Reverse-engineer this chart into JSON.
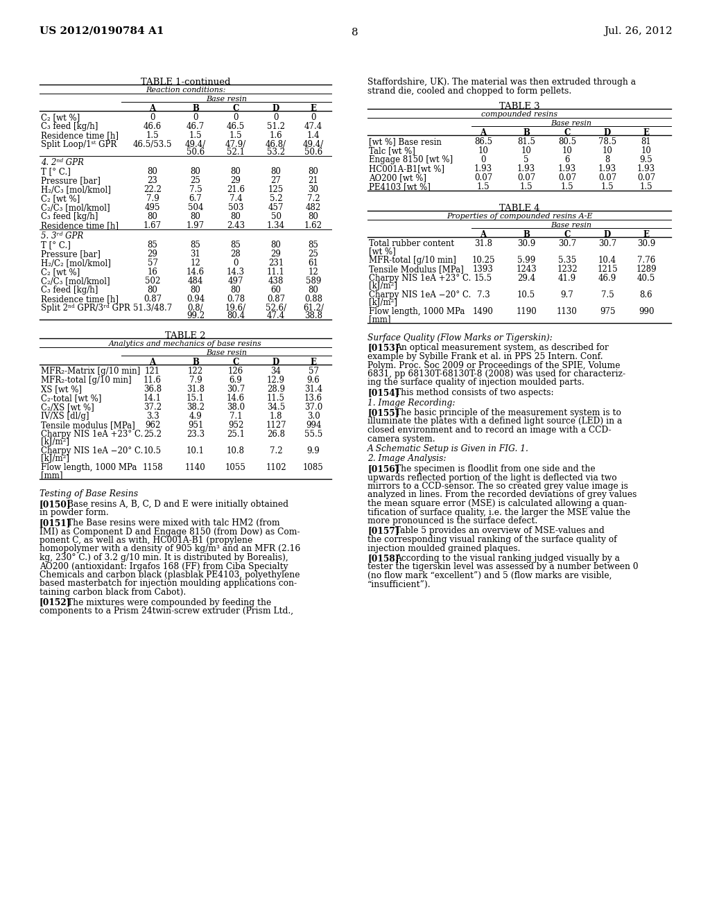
{
  "bg_color": "#ffffff",
  "page_header_left": "US 2012/0190784 A1",
  "page_header_right": "Jul. 26, 2012",
  "page_number": "8",
  "table1_title": "TABLE 1-continued",
  "table1_subtitle": "Reaction conditions:",
  "table1_subheader": "Base resin",
  "table1_cols": [
    "A",
    "B",
    "C",
    "D",
    "E"
  ],
  "table1_sections": [
    {
      "section_header": "",
      "rows": [
        [
          "C₂ [wt %]",
          "0",
          "0",
          "0",
          "0",
          "0"
        ],
        [
          "C₃ feed [kg/h]",
          "46.6",
          "46.7",
          "46.5",
          "51.2",
          "47.4"
        ],
        [
          "Residence time [h]",
          "1.5",
          "1.5",
          "1.5",
          "1.6",
          "1.4"
        ],
        [
          "Split Loop/1ˢᵗ GPR",
          "46.5/53.5",
          "49.4/\n50.6",
          "47.9/\n52.1",
          "46.8/\n53.2",
          "49.4/\n50.6"
        ]
      ]
    },
    {
      "section_header": "4. 2ⁿᵈ GPR",
      "rows": [
        [
          "T [° C.]",
          "80",
          "80",
          "80",
          "80",
          "80"
        ],
        [
          "Pressure [bar]",
          "23",
          "25",
          "29",
          "27",
          "21"
        ],
        [
          "H₂/C₃ [mol/kmol]",
          "22.2",
          "7.5",
          "21.6",
          "125",
          "30"
        ],
        [
          "C₂ [wt %]",
          "7.9",
          "6.7",
          "7.4",
          "5.2",
          "7.2"
        ],
        [
          "C₂/C₃ [mol/kmol]",
          "495",
          "504",
          "503",
          "457",
          "482"
        ],
        [
          "C₃ feed [kg/h]",
          "80",
          "80",
          "80",
          "50",
          "80"
        ],
        [
          "Residence time [h]",
          "1.67",
          "1.97",
          "2.43",
          "1.34",
          "1.62"
        ]
      ]
    },
    {
      "section_header": "5. 3ʳᵈ GPR",
      "rows": [
        [
          "T [° C.]",
          "85",
          "85",
          "85",
          "80",
          "85"
        ],
        [
          "Pressure [bar]",
          "29",
          "31",
          "28",
          "29",
          "25"
        ],
        [
          "H₂/C₂ [mol/kmol]",
          "57",
          "12",
          "0",
          "231",
          "61"
        ],
        [
          "C₂ [wt %]",
          "16",
          "14.6",
          "14.3",
          "11.1",
          "12"
        ],
        [
          "C₂/C₃ [mol/kmol]",
          "502",
          "484",
          "497",
          "438",
          "589"
        ],
        [
          "C₃ feed [kg/h]",
          "80",
          "80",
          "80",
          "60",
          "80"
        ],
        [
          "Residence time [h]",
          "0.87",
          "0.94",
          "0.78",
          "0.87",
          "0.88"
        ],
        [
          "Split 2ⁿᵈ GPR/3ʳᵈ GPR",
          "51.3/48.7",
          "0.8/\n99.2",
          "19.6/\n80.4",
          "52.6/\n47.4",
          "61.2/\n38.8"
        ]
      ]
    }
  ],
  "table2_title": "TABLE 2",
  "table2_subtitle": "Analytics and mechanics of base resins",
  "table2_subheader": "Base resin",
  "table2_cols": [
    "A",
    "B",
    "C",
    "D",
    "E"
  ],
  "table2_rows": [
    [
      "MFR₂-Matrix [g/10 min]",
      "121",
      "122",
      "126",
      "34",
      "57"
    ],
    [
      "MFR₂-total [g/10 min]",
      "11.6",
      "7.9",
      "6.9",
      "12.9",
      "9.6"
    ],
    [
      "XS [wt %]",
      "36.8",
      "31.8",
      "30.7",
      "28.9",
      "31.4"
    ],
    [
      "C₂-total [wt %]",
      "14.1",
      "15.1",
      "14.6",
      "11.5",
      "13.6"
    ],
    [
      "C₂/XS [wt %]",
      "37.2",
      "38.2",
      "38.0",
      "34.5",
      "37.0"
    ],
    [
      "IV/XS [dl/g]",
      "3.3",
      "4.9",
      "7.1",
      "1.8",
      "3.0"
    ],
    [
      "Tensile modulus [MPa]",
      "962",
      "951",
      "952",
      "1127",
      "994"
    ],
    [
      "Charpy NIS 1eA +23° C.\n[kJ/m²]",
      "25.2",
      "23.3",
      "25.1",
      "26.8",
      "55.5"
    ],
    [
      "Charpy NIS 1eA −20° C.\n[kJ/m²]",
      "10.5",
      "10.1",
      "10.8",
      "7.2",
      "9.9"
    ],
    [
      "Flow length, 1000 MPa\n[mm]",
      "1158",
      "1140",
      "1055",
      "1102",
      "1085"
    ]
  ],
  "table3_title": "TABLE 3",
  "table3_subtitle": "compounded resins",
  "table3_subheader": "Base resin",
  "table3_cols": [
    "A",
    "B",
    "C",
    "D",
    "E"
  ],
  "table3_rows": [
    [
      "[wt %] Base resin",
      "86.5",
      "81.5",
      "80.5",
      "78.5",
      "81"
    ],
    [
      "Talc [wt %]",
      "10",
      "10",
      "10",
      "10",
      "10"
    ],
    [
      "Engage 8150 [wt %]",
      "0",
      "5",
      "6",
      "8",
      "9.5"
    ],
    [
      "HC001A-B1[wt %]",
      "1.93",
      "1.93",
      "1.93",
      "1.93",
      "1.93"
    ],
    [
      "AO200 [wt %]",
      "0.07",
      "0.07",
      "0.07",
      "0.07",
      "0.07"
    ],
    [
      "PE4103 [wt %]",
      "1.5",
      "1.5",
      "1.5",
      "1.5",
      "1.5"
    ]
  ],
  "table4_title": "TABLE 4",
  "table4_subtitle": "Properties of compounded resins A-E",
  "table4_subheader": "Base resin",
  "table4_cols": [
    "A",
    "B",
    "C",
    "D",
    "E"
  ],
  "table4_rows": [
    [
      "Total rubber content\n[wt %]",
      "31.8",
      "30.9",
      "30.7",
      "30.7",
      "30.9"
    ],
    [
      "MFR-total [g/10 min]",
      "10.25",
      "5.99",
      "5.35",
      "10.4",
      "7.76"
    ],
    [
      "Tensile Modulus [MPa]",
      "1393",
      "1243",
      "1232",
      "1215",
      "1289"
    ],
    [
      "Charpy NIS 1eA +23° C.\n[kJ/m²]",
      "15.5",
      "29.4",
      "41.9",
      "46.9",
      "40.5"
    ],
    [
      "Charpy NIS 1eA −20° C.\n[kJ/m²]",
      "7.3",
      "10.5",
      "9.7",
      "7.5",
      "8.6"
    ],
    [
      "Flow length, 1000 MPa\n[mm]",
      "1490",
      "1190",
      "1130",
      "975",
      "990"
    ]
  ]
}
